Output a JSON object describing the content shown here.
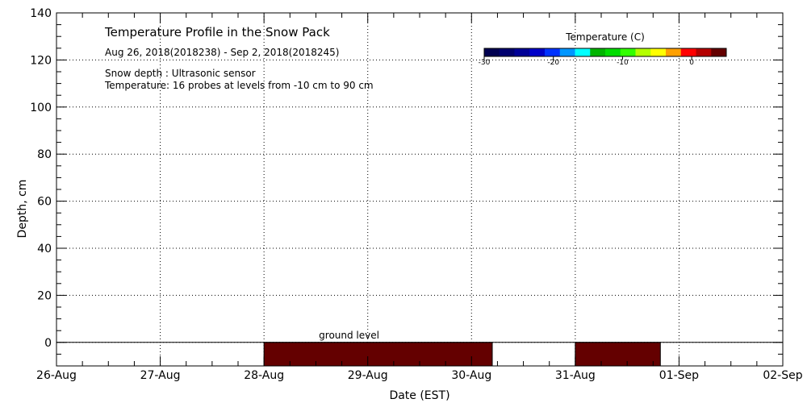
{
  "chart_data": {
    "type": "heatmap",
    "title": "Temperature Profile in the Snow Pack",
    "subtitle": "Aug 26, 2018(2018238) - Sep  2, 2018(2018245)",
    "notes": [
      "Snow depth : Ultrasonic sensor",
      "Temperature: 16 probes at levels from -10 cm to 90 cm"
    ],
    "xlabel": "Date (EST)",
    "ylabel": "Depth, cm",
    "x_ticks": [
      "26-Aug",
      "27-Aug",
      "28-Aug",
      "29-Aug",
      "30-Aug",
      "31-Aug",
      "01-Sep",
      "02-Sep"
    ],
    "xlim": [
      0,
      7
    ],
    "ylim": [
      -10,
      140
    ],
    "y_ticks": [
      0,
      20,
      40,
      60,
      80,
      100,
      120,
      140
    ],
    "grid": true,
    "ground_level_label": "ground level",
    "ground_level_depth": 0,
    "colorbar": {
      "title": "Temperature (C)",
      "ticks": [
        -30,
        -20,
        -10,
        0
      ],
      "range": [
        -30,
        5
      ],
      "colors": [
        "#000050",
        "#00006e",
        "#000096",
        "#0000c8",
        "#0032ff",
        "#0096ff",
        "#00ffff",
        "#00b400",
        "#00dc00",
        "#32ff00",
        "#b4ff00",
        "#ffff00",
        "#ffa000",
        "#ff0000",
        "#b40000",
        "#640000"
      ]
    },
    "segments": [
      {
        "x_start": 2.0,
        "x_end": 4.2,
        "y_top": 0,
        "y_bottom": -10,
        "color": "#640000"
      },
      {
        "x_start": 5.0,
        "x_end": 5.82,
        "y_top": 0,
        "y_bottom": -10,
        "color": "#640000"
      }
    ]
  }
}
